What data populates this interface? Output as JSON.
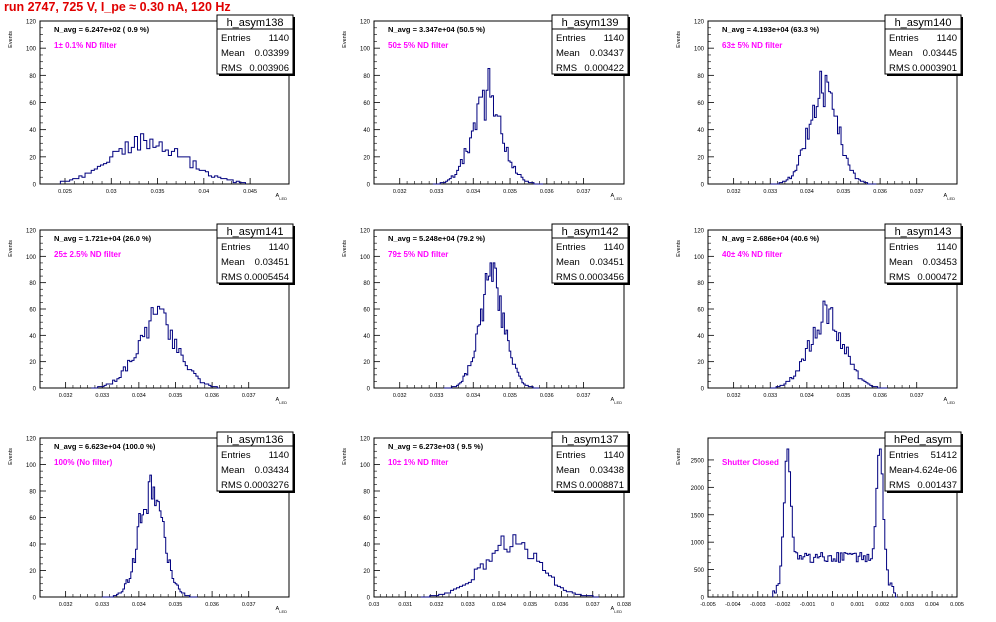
{
  "title": "run 2747,   725 V, I_pe ≈ 0.30 nA, 120 Hz",
  "colors": {
    "title": "#e00000",
    "histogram": "#00007f",
    "annotation": "#ff00ff",
    "axis": "#000000"
  },
  "chart_data": [
    {
      "type": "histogram",
      "stats_title": "h_asym138",
      "entries": "1140",
      "mean": "0.03399",
      "rms": "0.003906",
      "navg": "N_avg = 6.247e+02 ( 0.9 %)",
      "annotation": "1± 0.1% ND filter",
      "ylabel": "Events",
      "xlabel": "A_LED",
      "xlim": [
        0.0223,
        0.0492
      ],
      "ylim": [
        0,
        120
      ],
      "yticks": [
        0,
        20,
        40,
        60,
        80,
        100,
        120
      ],
      "xticks": [
        0.025,
        0.03,
        0.035,
        0.04,
        0.045
      ],
      "xtick_labels": [
        "0.025",
        "0.03",
        "0.035",
        "0.04",
        "0.045"
      ],
      "shape": {
        "type": "gauss",
        "center": 0.034,
        "sigma": 0.0039,
        "peak": 31,
        "n": 60,
        "lo": 0.0245,
        "hi": 0.0445
      }
    },
    {
      "type": "histogram",
      "stats_title": "h_asym139",
      "entries": "1140",
      "mean": "0.03437",
      "rms": "0.000422",
      "navg": "N_avg = 3.347e+04 (50.5 %)",
      "annotation": "50± 5% ND filter",
      "ylabel": "Events",
      "xlabel": "A_LED",
      "xlim": [
        0.0313,
        0.0381
      ],
      "ylim": [
        0,
        120
      ],
      "yticks": [
        0,
        20,
        40,
        60,
        80,
        100,
        120
      ],
      "xticks": [
        0.032,
        0.033,
        0.034,
        0.035,
        0.036,
        0.037
      ],
      "xtick_labels": [
        "0.032",
        "0.033",
        "0.034",
        "0.035",
        "0.036",
        "0.037"
      ],
      "shape": {
        "type": "gauss",
        "center": 0.03437,
        "sigma": 0.00042,
        "peak": 60,
        "spike": {
          "at": 0.03445,
          "value": 85
        },
        "n": 60,
        "lo": 0.0329,
        "hi": 0.0359
      }
    },
    {
      "type": "histogram",
      "stats_title": "h_asym140",
      "entries": "1140",
      "mean": "0.03445",
      "rms": "0.0003901",
      "navg": "N_avg = 4.193e+04 (63.3 %)",
      "annotation": "63± 5% ND filter",
      "ylabel": "Events",
      "xlabel": "A_LED",
      "xlim": [
        0.0313,
        0.0381
      ],
      "ylim": [
        0,
        120
      ],
      "yticks": [
        0,
        20,
        40,
        60,
        80,
        100,
        120
      ],
      "xticks": [
        0.032,
        0.033,
        0.034,
        0.035,
        0.036,
        0.037
      ],
      "xtick_labels": [
        "0.032",
        "0.033",
        "0.034",
        "0.035",
        "0.036",
        "0.037"
      ],
      "shape": {
        "type": "gauss",
        "center": 0.03445,
        "sigma": 0.00039,
        "peak": 72,
        "spike": {
          "at": 0.0345,
          "value": 80
        },
        "n": 60,
        "lo": 0.033,
        "hi": 0.0359
      }
    },
    {
      "type": "histogram",
      "stats_title": "h_asym141",
      "entries": "1140",
      "mean": "0.03451",
      "rms": "0.0005454",
      "navg": "N_avg = 1.721e+04 (26.0 %)",
      "annotation": "25± 2.5% ND filter",
      "ylabel": "Events",
      "xlabel": "A_LED",
      "xlim": [
        0.0313,
        0.0381
      ],
      "ylim": [
        0,
        120
      ],
      "yticks": [
        0,
        20,
        40,
        60,
        80,
        100,
        120
      ],
      "xticks": [
        0.032,
        0.033,
        0.034,
        0.035,
        0.036,
        0.037
      ],
      "xtick_labels": [
        "0.032",
        "0.033",
        "0.034",
        "0.035",
        "0.036",
        "0.037"
      ],
      "shape": {
        "type": "gauss",
        "center": 0.03451,
        "sigma": 0.00055,
        "peak": 52,
        "spike": {
          "at": 0.0346,
          "value": 60
        },
        "n": 60,
        "lo": 0.0327,
        "hi": 0.0362
      }
    },
    {
      "type": "histogram",
      "stats_title": "h_asym142",
      "entries": "1140",
      "mean": "0.03451",
      "rms": "0.0003456",
      "navg": "N_avg = 5.248e+04 (79.2 %)",
      "annotation": "79± 5% ND filter",
      "ylabel": "Events",
      "xlabel": "A_LED",
      "xlim": [
        0.0313,
        0.0381
      ],
      "ylim": [
        0,
        120
      ],
      "yticks": [
        0,
        20,
        40,
        60,
        80,
        100,
        120
      ],
      "xticks": [
        0.032,
        0.033,
        0.034,
        0.035,
        0.036,
        0.037
      ],
      "xtick_labels": [
        "0.032",
        "0.033",
        "0.034",
        "0.035",
        "0.036",
        "0.037"
      ],
      "shape": {
        "type": "gauss",
        "center": 0.03451,
        "sigma": 0.00035,
        "peak": 80,
        "spike": {
          "at": 0.03455,
          "value": 95
        },
        "n": 60,
        "lo": 0.0332,
        "hi": 0.0358
      }
    },
    {
      "type": "histogram",
      "stats_title": "h_asym143",
      "entries": "1140",
      "mean": "0.03453",
      "rms": "0.000472",
      "navg": "N_avg = 2.686e+04 (40.6 %)",
      "annotation": "40± 4% ND filter",
      "ylabel": "Events",
      "xlabel": "A_LED",
      "xlim": [
        0.0313,
        0.0381
      ],
      "ylim": [
        0,
        120
      ],
      "yticks": [
        0,
        20,
        40,
        60,
        80,
        100,
        120
      ],
      "xticks": [
        0.032,
        0.033,
        0.034,
        0.035,
        0.036,
        0.037
      ],
      "xtick_labels": [
        "0.032",
        "0.033",
        "0.034",
        "0.035",
        "0.036",
        "0.037"
      ],
      "shape": {
        "type": "gauss",
        "center": 0.03453,
        "sigma": 0.00047,
        "peak": 55,
        "spike": {
          "at": 0.03465,
          "value": 60
        },
        "n": 60,
        "lo": 0.033,
        "hi": 0.0362
      }
    },
    {
      "type": "histogram",
      "stats_title": "h_asym136",
      "entries": "1140",
      "mean": "0.03434",
      "rms": "0.0003276",
      "navg": "N_avg = 6.623e+04 (100.0 %)",
      "annotation": "100% (No filter)",
      "ylabel": "Events",
      "xlabel": "A_LED",
      "xlim": [
        0.0313,
        0.0381
      ],
      "ylim": [
        0,
        120
      ],
      "yticks": [
        0,
        20,
        40,
        60,
        80,
        100,
        120
      ],
      "xticks": [
        0.032,
        0.033,
        0.034,
        0.035,
        0.036,
        0.037
      ],
      "xtick_labels": [
        "0.032",
        "0.033",
        "0.034",
        "0.035",
        "0.036",
        "0.037"
      ],
      "shape": {
        "type": "gauss",
        "center": 0.03434,
        "sigma": 0.00033,
        "peak": 83,
        "spike": {
          "at": 0.0343,
          "value": 87
        },
        "n": 60,
        "lo": 0.033,
        "hi": 0.0356
      }
    },
    {
      "type": "histogram",
      "stats_title": "h_asym137",
      "entries": "1140",
      "mean": "0.03438",
      "rms": "0.0008871",
      "navg": "N_avg = 6.273e+03 ( 9.5 %)",
      "annotation": "10± 1% ND filter",
      "ylabel": "Events",
      "xlabel": "A_LED",
      "xlim": [
        0.03,
        0.038
      ],
      "ylim": [
        0,
        120
      ],
      "yticks": [
        0,
        20,
        40,
        60,
        80,
        100,
        120
      ],
      "xticks": [
        0.03,
        0.031,
        0.032,
        0.033,
        0.034,
        0.035,
        0.036,
        0.037,
        0.038
      ],
      "xtick_labels": [
        "0.03",
        "0.031",
        "0.032",
        "0.033",
        "0.034",
        "0.035",
        "0.036",
        "0.037",
        "0.038"
      ],
      "shape": {
        "type": "gauss",
        "center": 0.03438,
        "sigma": 0.00088,
        "peak": 40,
        "spike": {
          "at": 0.0345,
          "value": 47
        },
        "n": 60,
        "lo": 0.0315,
        "hi": 0.0372
      }
    },
    {
      "type": "histogram",
      "stats_title": "hPed_asym",
      "entries": "51412",
      "mean": "-4.624e-06",
      "rms": "0.001437",
      "navg": "",
      "annotation": "Shutter Closed",
      "ylabel": "Events",
      "xlabel": "",
      "xlim": [
        -0.005,
        0.005
      ],
      "ylim": [
        0,
        2900
      ],
      "yticks": [
        0,
        500,
        1000,
        1500,
        2000,
        2500
      ],
      "xticks": [
        -0.005,
        -0.004,
        -0.003,
        -0.002,
        -0.001,
        0,
        0.001,
        0.002,
        0.003,
        0.004,
        0.005
      ],
      "xtick_labels": [
        "-0.005",
        "-0.004",
        "-0.003",
        "-0.002",
        "-0.001",
        "0",
        "0.001",
        "0.002",
        "0.003",
        "0.004",
        "0.005"
      ],
      "shape": {
        "type": "bimodal",
        "centers": [
          -0.0018,
          0.0019
        ],
        "sigma": 0.00012,
        "peak": 2700,
        "base": 720,
        "n": 70,
        "lo": -0.0024,
        "hi": 0.0026
      }
    }
  ]
}
